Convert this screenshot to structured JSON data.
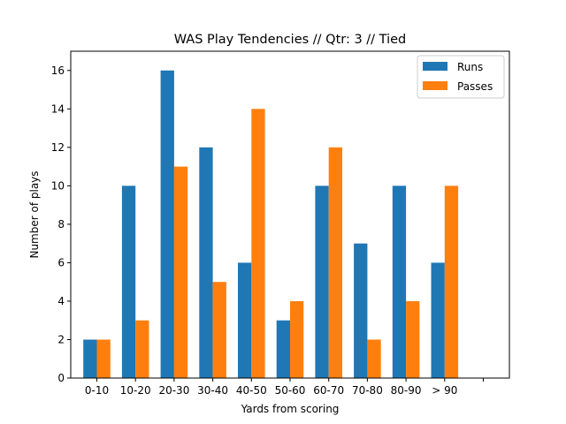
{
  "chart_data": {
    "type": "bar",
    "title": "WAS Play Tendencies // Qtr: 3 // Tied",
    "xlabel": "Yards from scoring",
    "ylabel": "Number of plays",
    "categories": [
      "0-10",
      "10-20",
      "20-30",
      "30-40",
      "40-50",
      "50-60",
      "60-70",
      "70-80",
      "80-90",
      "> 90",
      ""
    ],
    "series": [
      {
        "name": "Runs",
        "values": [
          2,
          10,
          16,
          12,
          6,
          3,
          10,
          7,
          10,
          6,
          null
        ],
        "color": "#1f77b4"
      },
      {
        "name": "Passes",
        "values": [
          2,
          3,
          11,
          5,
          14,
          4,
          12,
          2,
          4,
          10,
          null
        ],
        "color": "#ff7f0e"
      }
    ],
    "ylim": [
      0,
      17
    ],
    "yticks": [
      0,
      2,
      4,
      6,
      8,
      10,
      12,
      14,
      16
    ],
    "grid": false,
    "legend_position": "top-right"
  }
}
